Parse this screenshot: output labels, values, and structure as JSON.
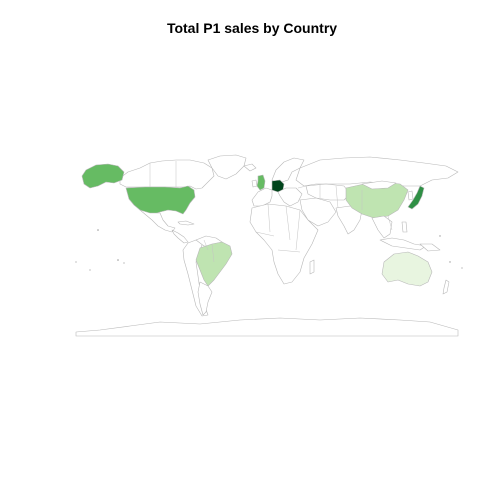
{
  "title": "Total P1 sales by Country",
  "colors": {
    "none": "#ffffff",
    "low": "#e8f5e0",
    "mid_low": "#c3e6b6",
    "mid": "#bfe4b1",
    "mid_high": "#66bb63",
    "high": "#2f8f45",
    "max": "#00441b"
  },
  "countries": [
    {
      "name": "Germany",
      "level": "max"
    },
    {
      "name": "United Kingdom",
      "level": "mid_high"
    },
    {
      "name": "United States",
      "level": "mid_high"
    },
    {
      "name": "Japan",
      "level": "high"
    },
    {
      "name": "China",
      "level": "mid"
    },
    {
      "name": "Brazil",
      "level": "mid"
    },
    {
      "name": "Australia",
      "level": "low"
    }
  ]
}
